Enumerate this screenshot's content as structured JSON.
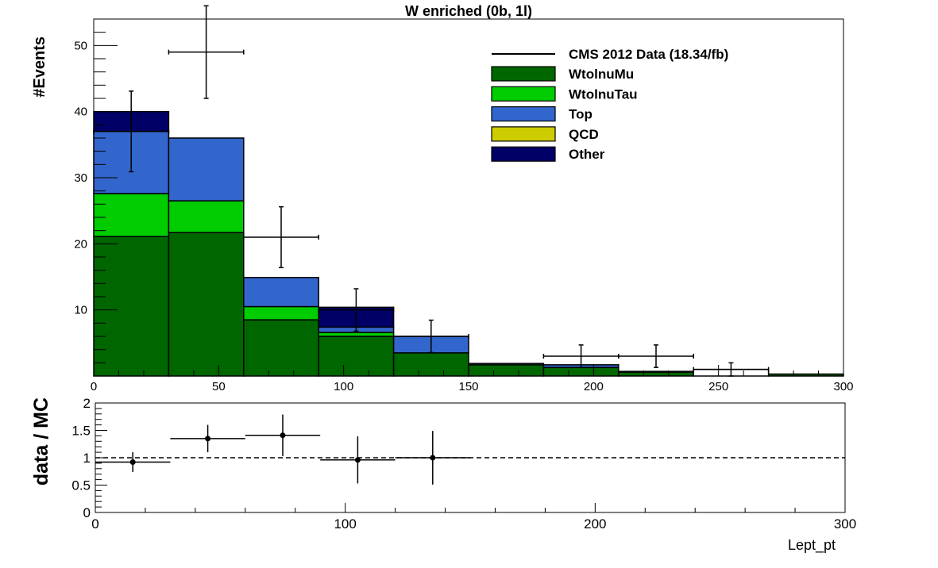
{
  "chart_data": [
    {
      "type": "bar",
      "stacked": true,
      "title": "W enriched (0b, 1l)",
      "ylabel": "#Events",
      "xlabel": "",
      "xlim": [
        0,
        300
      ],
      "ylim": [
        0,
        54
      ],
      "bin_edges": [
        0,
        30,
        60,
        90,
        120,
        150,
        180,
        210,
        240,
        270,
        300
      ],
      "x_ticks": [
        "0",
        "50",
        "100",
        "150",
        "200",
        "250",
        "300"
      ],
      "y_ticks": [
        "10",
        "20",
        "30",
        "40",
        "50"
      ],
      "legend_position": "top-right",
      "series": [
        {
          "name": "WtolnuMu",
          "color": "#006600",
          "values": [
            21.1,
            21.7,
            8.5,
            6.0,
            3.5,
            1.7,
            1.3,
            0.6,
            0.0,
            0.3
          ]
        },
        {
          "name": "WtolnuTau",
          "color": "#00cc00",
          "values": [
            6.5,
            4.8,
            2.0,
            0.6,
            0.0,
            0.0,
            0.0,
            0.0,
            0.0,
            0.0
          ]
        },
        {
          "name": "Top",
          "color": "#3366cc",
          "values": [
            9.4,
            9.5,
            4.4,
            0.8,
            2.5,
            0.2,
            0.4,
            0.1,
            0.0,
            0.0
          ]
        },
        {
          "name": "QCD",
          "color": "#cccc00",
          "values": [
            0.0,
            0.0,
            0.0,
            0.0,
            0.0,
            0.0,
            0.0,
            0.0,
            0.0,
            0.0
          ]
        },
        {
          "name": "Other",
          "color": "#000066",
          "values": [
            3.0,
            0.0,
            0.0,
            3.0,
            0.0,
            0.0,
            0.0,
            0.0,
            0.0,
            0.0
          ]
        }
      ],
      "empty_bins": [
        {
          "x0": 240,
          "x1": 270,
          "value": 1.0
        }
      ],
      "data": {
        "name": "CMS 2012 Data (18.34/fb)",
        "points": [
          {
            "x": 15,
            "y": 37,
            "err": 6.1
          },
          {
            "x": 45,
            "y": 49,
            "err": 7.0
          },
          {
            "x": 75,
            "y": 21,
            "err": 4.6
          },
          {
            "x": 105,
            "y": 10,
            "err": 3.2
          },
          {
            "x": 135,
            "y": 6,
            "err": 2.45
          },
          {
            "x": 195,
            "y": 3,
            "err": 1.7
          },
          {
            "x": 225,
            "y": 3,
            "err": 1.7
          },
          {
            "x": 255,
            "y": 1,
            "err": 1.0
          }
        ]
      }
    },
    {
      "type": "scatter",
      "ylabel": "data / MC",
      "xlabel": "Lept_pt",
      "xlim": [
        0,
        300
      ],
      "ylim": [
        0,
        2
      ],
      "x_ticks": [
        "0",
        "100",
        "200",
        "300"
      ],
      "y_ticks": [
        "0",
        "0.5",
        "1",
        "1.5",
        "2"
      ],
      "reference_line": 1,
      "points": [
        {
          "x": 15,
          "y": 0.92,
          "err": 0.18
        },
        {
          "x": 45,
          "y": 1.35,
          "err": 0.25
        },
        {
          "x": 75,
          "y": 1.41,
          "err": 0.38
        },
        {
          "x": 105,
          "y": 0.96,
          "err": 0.43
        },
        {
          "x": 135,
          "y": 1.0,
          "err": 0.49
        }
      ]
    }
  ]
}
